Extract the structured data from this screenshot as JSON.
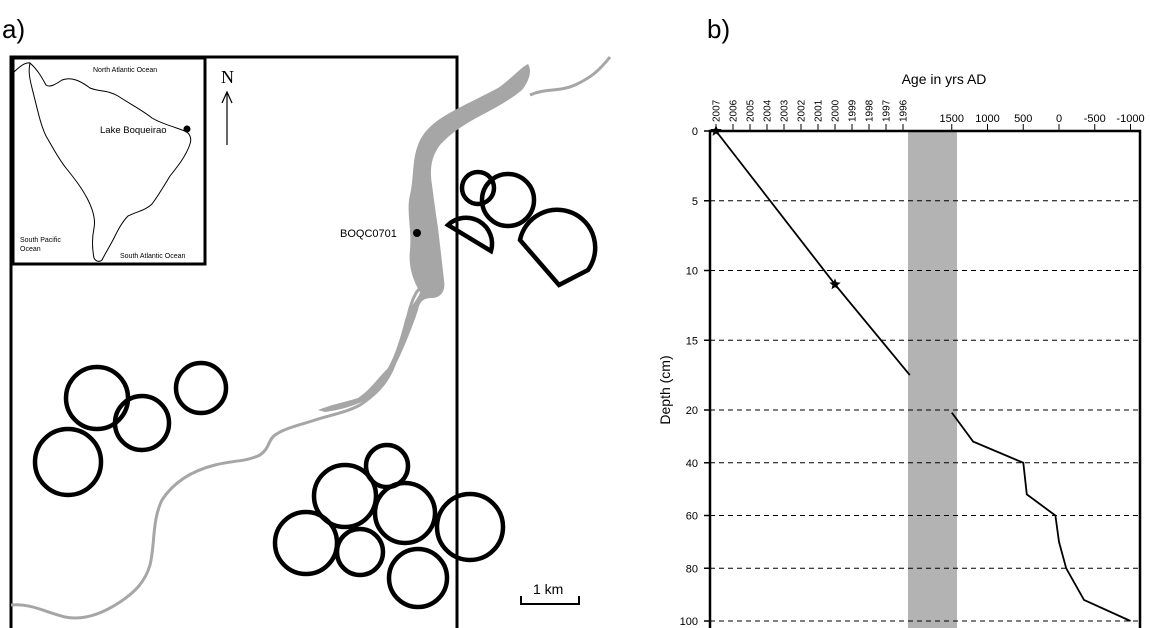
{
  "panel_a": {
    "label": "a)",
    "north_label": "N",
    "inset": {
      "ocean_north_atlantic": "North Atlantic Ocean",
      "ocean_south_pacific_line1": "South Pacific",
      "ocean_south_pacific_line2": "Ocean",
      "ocean_south_atlantic": "South Atlantic Ocean",
      "lake_label": "Lake Boqueirao"
    },
    "site_label": "BOQC0701",
    "scale_label": "1 km"
  },
  "panel_b": {
    "label": "b)",
    "chart_data": {
      "type": "line",
      "title": "Age in yrs  AD",
      "ylabel": "Depth (cm)",
      "upper_axis": {
        "note": "annual scale (left segment)",
        "ticks": [
          "2007",
          "2006",
          "2005",
          "2004",
          "2003",
          "2002",
          "2001",
          "2000",
          "1999",
          "1998",
          "1997",
          "1996"
        ]
      },
      "lower_axis": {
        "note": "long scale (right segment)",
        "ticks": [
          "1500",
          "1000",
          "500",
          "0",
          "-500",
          "-1000"
        ]
      },
      "depth_ticks": [
        "0",
        "5",
        "10",
        "15",
        "20",
        "40",
        "60",
        "80",
        "100"
      ],
      "series": [
        {
          "segment": "recent",
          "points": [
            {
              "age": 2007,
              "depth": 0
            },
            {
              "age": 2000,
              "depth": 11
            },
            {
              "age": 1995.6,
              "depth": 17.5
            }
          ],
          "star_markers": [
            {
              "age": 2007,
              "depth": 0
            },
            {
              "age": 2000,
              "depth": 11
            }
          ]
        },
        {
          "segment": "older",
          "points": [
            {
              "age": 1500,
              "depth": 21
            },
            {
              "age": 1200,
              "depth": 32
            },
            {
              "age": 500,
              "depth": 40
            },
            {
              "age": 450,
              "depth": 52
            },
            {
              "age": 50,
              "depth": 60
            },
            {
              "age": 0,
              "depth": 70
            },
            {
              "age": -100,
              "depth": 80
            },
            {
              "age": -350,
              "depth": 92
            },
            {
              "age": -1000,
              "depth": 100
            }
          ]
        }
      ],
      "hiatus_band": {
        "color": "#b3b3b3"
      },
      "gridlines": "dashed horizontal at each depth tick"
    }
  }
}
